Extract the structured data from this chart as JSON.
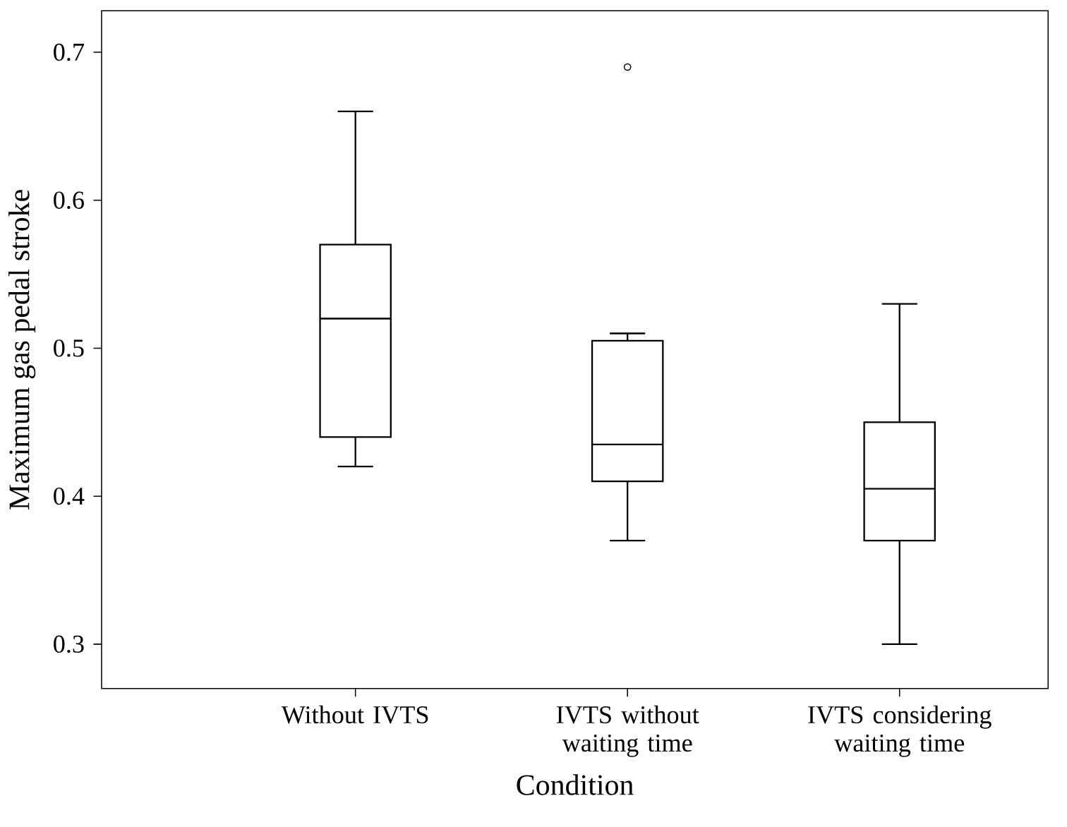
{
  "chart_data": {
    "type": "box",
    "xlabel": "Condition",
    "ylabel": "Maximum gas pedal stroke",
    "categories": [
      "Without IVTS",
      "IVTS without waiting time",
      "IVTS considering waiting time"
    ],
    "boxes": [
      {
        "low": 0.42,
        "q1": 0.44,
        "median": 0.52,
        "q3": 0.57,
        "high": 0.66
      },
      {
        "low": 0.37,
        "q1": 0.41,
        "median": 0.435,
        "q3": 0.505,
        "high": 0.51,
        "outliers": [
          0.69
        ]
      },
      {
        "low": 0.3,
        "q1": 0.37,
        "median": 0.405,
        "q3": 0.45,
        "high": 0.53
      }
    ],
    "marker": "circle",
    "ylim": [
      0.27,
      0.728
    ],
    "yticks": [
      0.3,
      0.4,
      0.5,
      0.6,
      0.7
    ]
  }
}
